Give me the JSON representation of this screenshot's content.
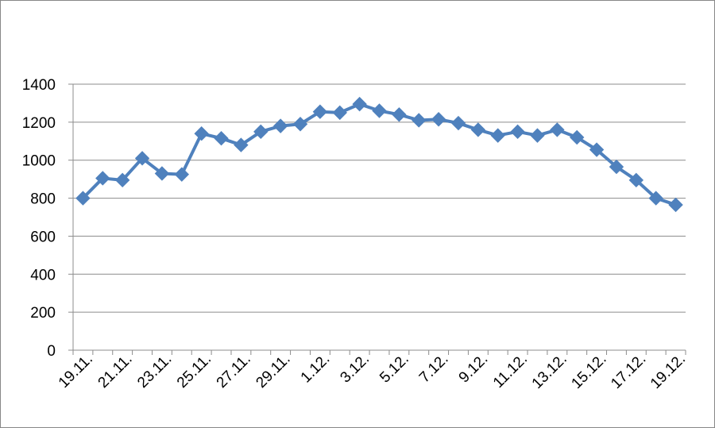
{
  "chart_data": {
    "type": "line",
    "title": "",
    "xlabel": "",
    "ylabel": "",
    "ylim": [
      0,
      1400
    ],
    "yticks": [
      0,
      200,
      400,
      600,
      800,
      1000,
      1200,
      1400
    ],
    "grid": true,
    "legend": "none",
    "x": [
      "19.11.",
      "20.11.",
      "21.11.",
      "22.11.",
      "23.11.",
      "24.11.",
      "25.11.",
      "26.11.",
      "27.11.",
      "28.11.",
      "29.11.",
      "30.11.",
      "1.12.",
      "2.12.",
      "3.12.",
      "4.12.",
      "5.12.",
      "6.12.",
      "7.12.",
      "8.12.",
      "9.12.",
      "10.12.",
      "11.12.",
      "12.12.",
      "13.12.",
      "14.12.",
      "15.12.",
      "16.12.",
      "17.12.",
      "18.12.",
      "19.12."
    ],
    "xtick_labels": [
      "19.11.",
      "21.11.",
      "23.11.",
      "25.11.",
      "27.11.",
      "29.11.",
      "1.12.",
      "3.12.",
      "5.12.",
      "7.12.",
      "9.12.",
      "11.12.",
      "13.12.",
      "15.12.",
      "17.12.",
      "19.12."
    ],
    "series": [
      {
        "values": [
          800,
          905,
          895,
          1010,
          930,
          925,
          1140,
          1115,
          1080,
          1150,
          1180,
          1190,
          1255,
          1250,
          1295,
          1260,
          1240,
          1210,
          1215,
          1195,
          1160,
          1130,
          1150,
          1130,
          1160,
          1120,
          1055,
          965,
          895,
          800,
          765
        ],
        "color": "#4F81BD"
      }
    ]
  }
}
